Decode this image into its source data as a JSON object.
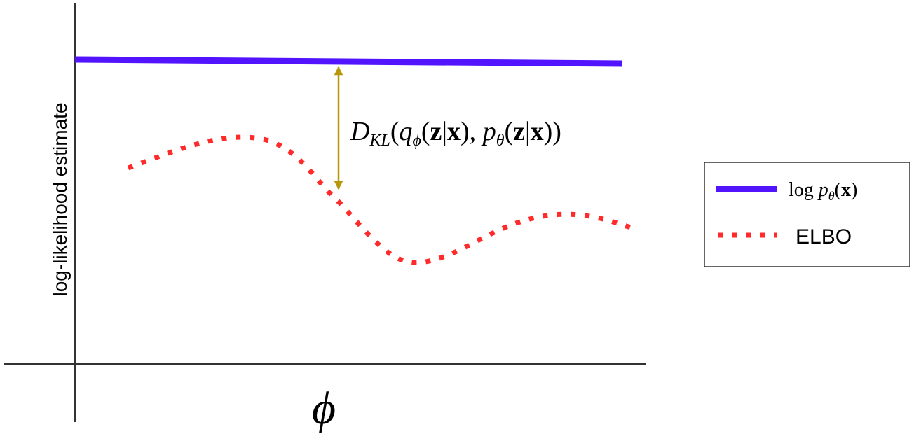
{
  "y_axis_label": "log-likelihood estimate",
  "x_axis_label": "ϕ",
  "annotation": [
    "D",
    "KL",
    "(",
    "q",
    "ϕ",
    "(",
    "z",
    "|",
    "x",
    "), ",
    "p",
    "θ",
    "(",
    "z",
    "|",
    "x",
    "))"
  ],
  "legend": [
    {
      "label": [
        "log ",
        "p",
        "θ",
        "(",
        "x",
        ")"
      ]
    },
    {
      "label": "ELBO"
    }
  ]
}
